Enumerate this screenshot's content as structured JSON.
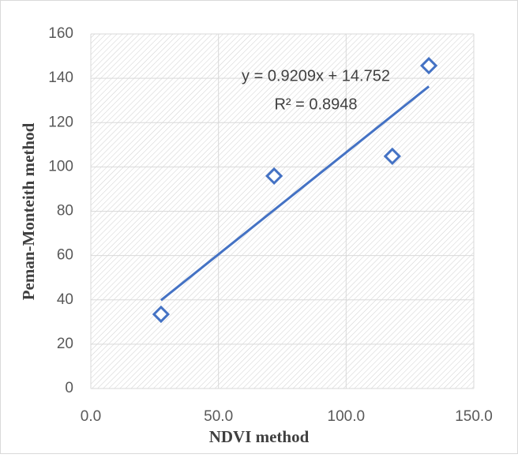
{
  "chart_data": {
    "type": "scatter",
    "xlabel": "NDVI method",
    "ylabel": "Peman-Monteith method",
    "annotations": [
      "y = 0.9209x + 14.752",
      "R² = 0.8948"
    ],
    "x": [
      27.5,
      71.8,
      118.1,
      132.4
    ],
    "values": [
      33.5,
      95.9,
      104.8,
      145.7
    ],
    "color": "#4472c4",
    "trendline": "linear",
    "xlim": [
      0,
      150
    ],
    "xticks": [
      {
        "value": 0,
        "label": "0.0"
      },
      {
        "value": 50,
        "label": "50.0"
      },
      {
        "value": 100,
        "label": "100.0"
      },
      {
        "value": 150,
        "label": "150.0"
      }
    ],
    "ylim": [
      0,
      160
    ],
    "yticks": [
      0,
      20,
      40,
      60,
      80,
      100,
      120,
      140,
      160
    ],
    "grid": true
  }
}
